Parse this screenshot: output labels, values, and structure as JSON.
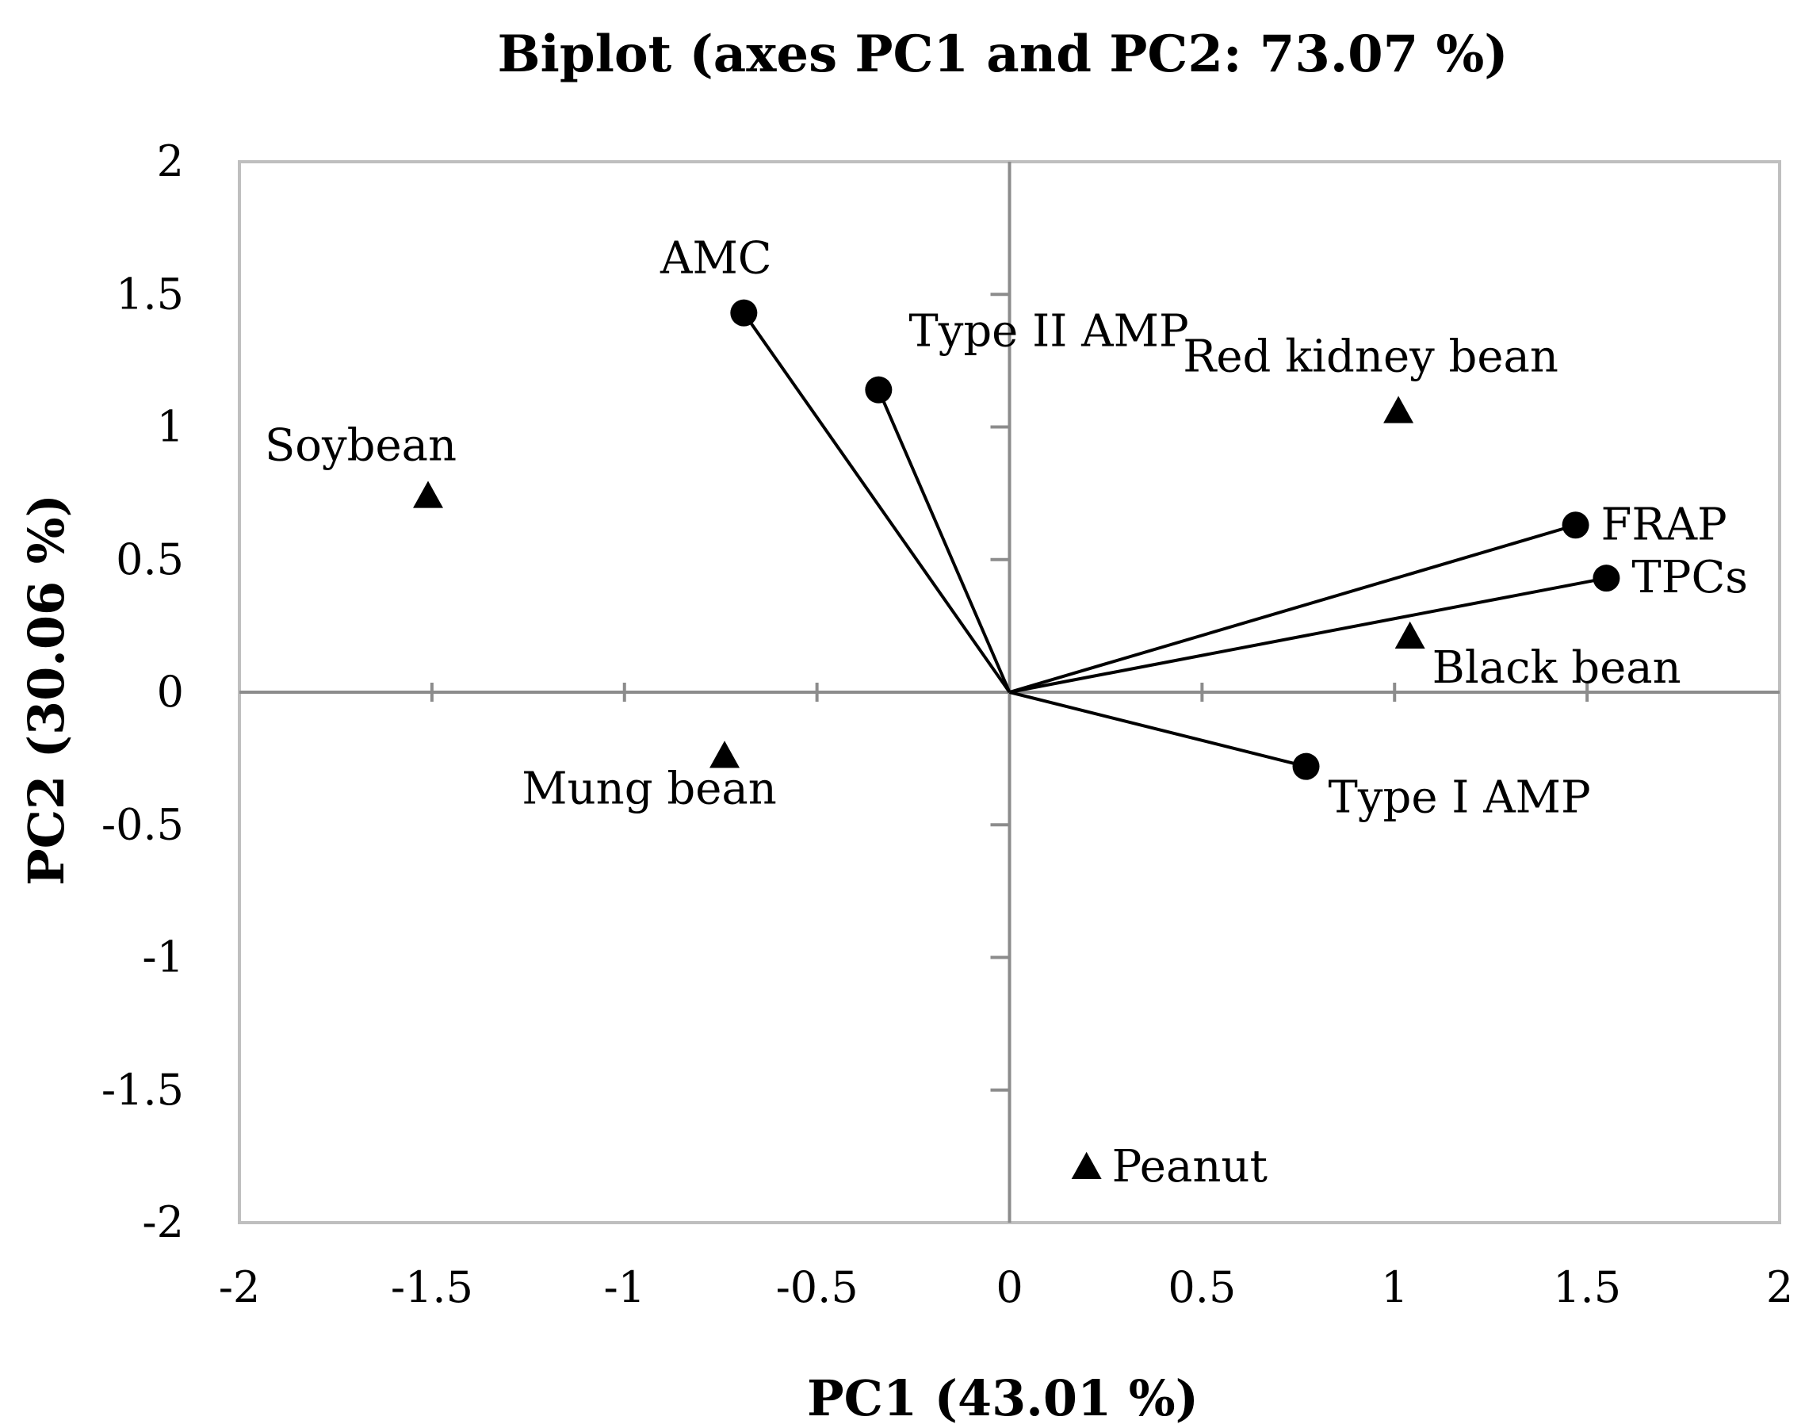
{
  "chart_data": {
    "type": "scatter",
    "subtype": "biplot",
    "title": "Biplot (axes PC1 and PC2: 73.07 %)",
    "xlabel": "PC1 (43.01 %)",
    "ylabel": "PC2 (30.06 %)",
    "xlim": [
      -2,
      2
    ],
    "ylim": [
      -2,
      2
    ],
    "xticks": [
      "-2",
      "-1.5",
      "-1",
      "-0.5",
      "0",
      "0.5",
      "1",
      "1.5",
      "2"
    ],
    "yticks": [
      "2",
      "1.5",
      "1",
      "0.5",
      "0",
      "-0.5",
      "-1",
      "-1.5",
      "-2"
    ],
    "grid": false,
    "colors": {
      "marks": "#000000",
      "frame": "#bfbfbf",
      "axes": "#8c8c8c"
    },
    "variables": [
      {
        "name": "AMC",
        "x": -0.69,
        "y": 1.43,
        "label_pos": "above"
      },
      {
        "name": "Type II AMP",
        "x": -0.34,
        "y": 1.14,
        "label_pos": "above-right"
      },
      {
        "name": "FRAP",
        "x": 1.47,
        "y": 0.63,
        "label_pos": "right"
      },
      {
        "name": "TPCs",
        "x": 1.55,
        "y": 0.43,
        "label_pos": "right"
      },
      {
        "name": "Type I AMP",
        "x": 0.77,
        "y": -0.28,
        "label_pos": "below-right"
      }
    ],
    "observations": [
      {
        "name": "Red kidney bean",
        "x": 1.01,
        "y": 1.06,
        "label_pos": "above"
      },
      {
        "name": "Soybean",
        "x": -1.51,
        "y": 0.74,
        "label_pos": "above-left"
      },
      {
        "name": "Black bean",
        "x": 1.04,
        "y": 0.21,
        "label_pos": "below-right"
      },
      {
        "name": "Mung bean",
        "x": -0.74,
        "y": -0.24,
        "label_pos": "below-left"
      },
      {
        "name": "Peanut",
        "x": 0.2,
        "y": -1.79,
        "label_pos": "right"
      }
    ]
  }
}
